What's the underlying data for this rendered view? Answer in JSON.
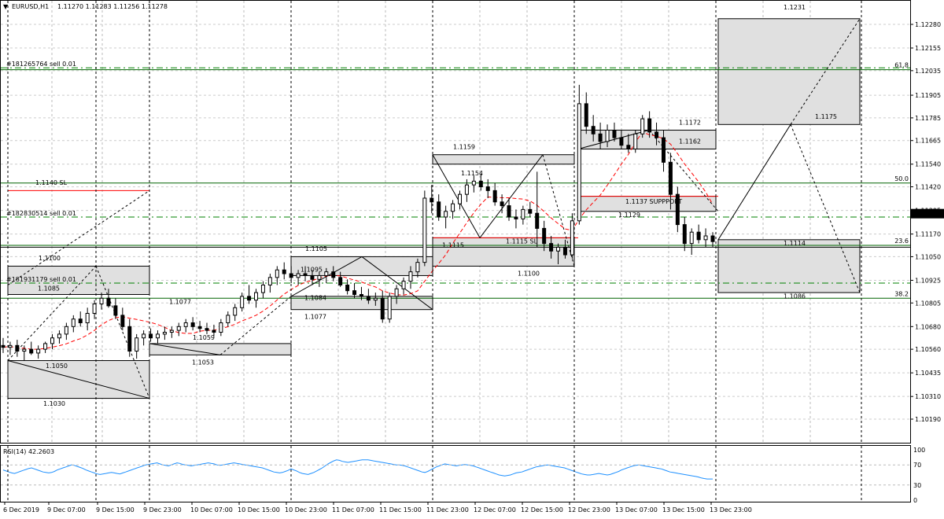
{
  "header": {
    "symbol": "EURUSD,H1",
    "ohlc": "1.11270 1.11283 1.11256 1.11278",
    "menu_glyph": "▼"
  },
  "price_axis": {
    "ticks": [
      "1.12280",
      "1.12155",
      "1.12035",
      "1.11905",
      "1.11785",
      "1.11665",
      "1.11540",
      "1.11420",
      "1.11295",
      "1.11170",
      "1.11050",
      "1.10925",
      "1.10805",
      "1.10680",
      "1.10560",
      "1.10435",
      "1.10310",
      "1.10190"
    ],
    "current_price": "1.11278"
  },
  "time_axis": {
    "ticks": [
      "6 Dec 2019",
      "9 Dec 07:00",
      "9 Dec 15:00",
      "9 Dec 23:00",
      "10 Dec 07:00",
      "10 Dec 15:00",
      "10 Dec 23:00",
      "11 Dec 07:00",
      "11 Dec 15:00",
      "11 Dec 23:00",
      "12 Dec 07:00",
      "12 Dec 15:00",
      "12 Dec 23:00",
      "13 Dec 07:00",
      "13 Dec 15:00",
      "13 Dec 23:00"
    ]
  },
  "fib_levels": [
    {
      "label": "61.8",
      "price": 1.1204
    },
    {
      "label": "50.0",
      "price": 1.1144
    },
    {
      "label": "23.6",
      "price": 1.1111
    },
    {
      "label": "38.2",
      "price": 1.1083
    }
  ],
  "order_lines": [
    {
      "label": "#181265764 sell 0.01",
      "price": 1.1205
    },
    {
      "label": "#182830514 sell 0.01",
      "price": 1.1126
    },
    {
      "label": "#181931179 sell 0.01",
      "price": 1.1091
    }
  ],
  "annotations": [
    {
      "text": "1.1140 SL",
      "color": "#ff0000"
    },
    {
      "text": "1.1137 SUPPPORT",
      "color": "#ff0000"
    },
    {
      "text": "1.1115 SL",
      "color": "#ff0000"
    },
    {
      "text": "1.1231"
    },
    {
      "text": "1.1175"
    },
    {
      "text": "1.1114"
    },
    {
      "text": "1.1086"
    },
    {
      "text": "1.1172"
    },
    {
      "text": "1.1162"
    },
    {
      "text": "1.1129"
    },
    {
      "text": "1.1159"
    },
    {
      "text": "1.1154"
    },
    {
      "text": "1.1115"
    },
    {
      "text": "1.1100"
    },
    {
      "text": "1.1105"
    },
    {
      "text": "1.1095"
    },
    {
      "text": "1.1084"
    },
    {
      "text": "1.1077"
    },
    {
      "text": "1.1077"
    },
    {
      "text": "1.1059"
    },
    {
      "text": "1.1053"
    },
    {
      "text": "1.1100"
    },
    {
      "text": "1.1085"
    },
    {
      "text": "1.1050"
    },
    {
      "text": "1.1030"
    }
  ],
  "rsi": {
    "label": "RSI(14) 42.2603",
    "ticks": [
      "100",
      "70",
      "30",
      "0"
    ],
    "values": [
      60,
      58,
      56,
      54,
      53,
      55,
      57,
      59,
      61,
      63,
      64,
      62,
      60,
      58,
      56,
      55,
      54,
      55,
      57,
      60,
      62,
      64,
      66,
      68,
      70,
      69,
      67,
      65,
      63,
      60,
      58,
      56,
      54,
      52,
      51,
      52,
      53,
      54,
      55,
      54,
      53,
      52,
      54,
      56,
      58,
      60,
      62,
      64,
      66,
      68,
      70,
      71,
      72,
      73,
      74,
      72,
      70,
      69,
      68,
      70,
      72,
      74,
      73,
      71,
      70,
      69,
      68,
      69,
      70,
      71,
      72,
      73,
      74,
      73,
      72,
      70,
      69,
      70,
      71,
      72,
      73,
      74,
      73,
      72,
      71,
      70,
      69,
      68,
      67,
      66,
      65,
      64,
      62,
      60,
      58,
      56,
      55,
      54,
      55,
      57,
      59,
      62,
      60,
      58,
      55,
      53,
      52,
      51,
      53,
      55,
      58,
      61,
      64,
      68,
      72,
      75,
      78,
      80,
      79,
      77,
      76,
      75,
      76,
      77,
      78,
      79,
      80,
      80,
      80,
      79,
      78,
      77,
      76,
      75,
      74,
      73,
      72,
      71,
      70,
      70,
      69,
      68,
      66,
      64,
      62,
      60,
      58,
      56,
      55,
      57,
      60,
      63,
      66,
      68,
      70,
      72,
      71,
      70,
      69,
      68,
      69,
      70,
      71,
      70,
      69,
      68,
      66,
      64,
      62,
      60,
      58,
      56,
      54,
      52,
      50,
      49,
      48,
      49,
      50,
      52,
      54,
      55,
      56,
      58,
      60,
      62,
      64,
      66,
      67,
      68,
      69,
      70,
      69,
      68,
      67,
      66,
      65,
      64,
      62,
      60,
      58,
      56,
      54,
      52,
      51,
      50,
      50,
      51,
      52,
      53,
      52,
      51,
      50,
      51,
      53,
      55,
      57,
      60,
      62,
      64,
      66,
      68,
      69,
      70,
      69,
      68,
      67,
      66,
      65,
      64,
      63,
      62,
      60,
      58,
      56,
      55,
      54,
      53,
      52,
      51,
      50,
      49,
      48,
      47,
      46,
      44,
      43,
      42,
      42,
      42
    ]
  },
  "colors": {
    "bull_candle": "#ffffff",
    "bear_candle": "#000000",
    "fib_line": "#006400",
    "order_line": "#008000",
    "sl_line": "#ff0000",
    "ma_line": "#ff0000",
    "rsi_line": "#1e90ff",
    "box_fill": "#e0e0e0",
    "current_price_bg": "#000000"
  },
  "candles": [
    [
      1.1058,
      1.1062,
      1.1054,
      1.1057
    ],
    [
      1.1057,
      1.106,
      1.1053,
      1.1058
    ],
    [
      1.1058,
      1.1061,
      1.1052,
      1.1055
    ],
    [
      1.1055,
      1.1058,
      1.105,
      1.1056
    ],
    [
      1.1056,
      1.106,
      1.1053,
      1.1054
    ],
    [
      1.1054,
      1.1058,
      1.1051,
      1.1056
    ],
    [
      1.1056,
      1.106,
      1.1054,
      1.1059
    ],
    [
      1.1059,
      1.1064,
      1.1056,
      1.1062
    ],
    [
      1.1062,
      1.1066,
      1.1059,
      1.1064
    ],
    [
      1.1064,
      1.107,
      1.1061,
      1.1068
    ],
    [
      1.1068,
      1.1074,
      1.1065,
      1.1072
    ],
    [
      1.1072,
      1.1076,
      1.1068,
      1.107
    ],
    [
      1.107,
      1.1078,
      1.1066,
      1.1075
    ],
    [
      1.1075,
      1.1082,
      1.1072,
      1.108
    ],
    [
      1.108,
      1.1086,
      1.1077,
      1.1083
    ],
    [
      1.1083,
      1.1088,
      1.1078,
      1.1079
    ],
    [
      1.1079,
      1.1083,
      1.1072,
      1.1074
    ],
    [
      1.1074,
      1.1078,
      1.1066,
      1.1068
    ],
    [
      1.1068,
      1.1072,
      1.1052,
      1.1055
    ],
    [
      1.1055,
      1.1064,
      1.1051,
      1.1062
    ],
    [
      1.1062,
      1.1066,
      1.1058,
      1.1064
    ],
    [
      1.1064,
      1.1067,
      1.106,
      1.1062
    ],
    [
      1.1062,
      1.1066,
      1.1059,
      1.1064
    ],
    [
      1.1064,
      1.1068,
      1.1061,
      1.1065
    ],
    [
      1.1065,
      1.1068,
      1.1062,
      1.1066
    ],
    [
      1.1066,
      1.107,
      1.1063,
      1.1068
    ],
    [
      1.1068,
      1.1072,
      1.1065,
      1.107
    ],
    [
      1.107,
      1.1073,
      1.1066,
      1.1068
    ],
    [
      1.1068,
      1.1071,
      1.1065,
      1.1067
    ],
    [
      1.1067,
      1.107,
      1.1064,
      1.1066
    ],
    [
      1.1066,
      1.1069,
      1.1063,
      1.1065
    ],
    [
      1.1065,
      1.1072,
      1.1063,
      1.107
    ],
    [
      1.107,
      1.1076,
      1.1068,
      1.1074
    ],
    [
      1.1074,
      1.108,
      1.1071,
      1.1078
    ],
    [
      1.1078,
      1.1086,
      1.1076,
      1.1084
    ],
    [
      1.1084,
      1.109,
      1.108,
      1.1082
    ],
    [
      1.1082,
      1.1088,
      1.1078,
      1.1086
    ],
    [
      1.1086,
      1.1092,
      1.1083,
      1.109
    ],
    [
      1.109,
      1.1096,
      1.1086,
      1.1094
    ],
    [
      1.1094,
      1.11,
      1.109,
      1.1098
    ],
    [
      1.1098,
      1.1102,
      1.1093,
      1.1096
    ],
    [
      1.1096,
      1.11,
      1.1091,
      1.1094
    ],
    [
      1.1094,
      1.1098,
      1.109,
      1.1096
    ],
    [
      1.1096,
      1.11,
      1.1092,
      1.1095
    ],
    [
      1.1095,
      1.1098,
      1.109,
      1.1093
    ],
    [
      1.1093,
      1.1097,
      1.1089,
      1.1095
    ],
    [
      1.1095,
      1.1099,
      1.1091,
      1.1097
    ],
    [
      1.1097,
      1.11,
      1.1092,
      1.1094
    ],
    [
      1.1094,
      1.1097,
      1.1089,
      1.109
    ],
    [
      1.109,
      1.1093,
      1.1085,
      1.1087
    ],
    [
      1.1087,
      1.1091,
      1.1083,
      1.1085
    ],
    [
      1.1085,
      1.1089,
      1.1082,
      1.1084
    ],
    [
      1.1084,
      1.1088,
      1.108,
      1.1082
    ],
    [
      1.1082,
      1.1086,
      1.1079,
      1.1083
    ],
    [
      1.1083,
      1.1087,
      1.107,
      1.1072
    ],
    [
      1.1072,
      1.1086,
      1.107,
      1.1084
    ],
    [
      1.1084,
      1.109,
      1.108,
      1.1088
    ],
    [
      1.1088,
      1.1094,
      1.1085,
      1.1092
    ],
    [
      1.1092,
      1.11,
      1.1088,
      1.1097
    ],
    [
      1.1097,
      1.1104,
      1.1094,
      1.1102
    ],
    [
      1.1102,
      1.114,
      1.11,
      1.1136
    ],
    [
      1.1136,
      1.1143,
      1.1128,
      1.1134
    ],
    [
      1.1134,
      1.1138,
      1.1124,
      1.1126
    ],
    [
      1.1126,
      1.1132,
      1.112,
      1.1129
    ],
    [
      1.1129,
      1.1135,
      1.1125,
      1.1133
    ],
    [
      1.1133,
      1.114,
      1.113,
      1.1138
    ],
    [
      1.1138,
      1.1146,
      1.1134,
      1.1143
    ],
    [
      1.1143,
      1.1148,
      1.1139,
      1.1145
    ],
    [
      1.1145,
      1.1149,
      1.114,
      1.1142
    ],
    [
      1.1142,
      1.1146,
      1.1136,
      1.114
    ],
    [
      1.114,
      1.1144,
      1.1132,
      1.1134
    ],
    [
      1.1134,
      1.1138,
      1.1128,
      1.1132
    ],
    [
      1.1132,
      1.1136,
      1.1124,
      1.1126
    ],
    [
      1.1126,
      1.113,
      1.112,
      1.1125
    ],
    [
      1.1125,
      1.1132,
      1.1122,
      1.113
    ],
    [
      1.113,
      1.1134,
      1.1126,
      1.1128
    ],
    [
      1.1128,
      1.115,
      1.111,
      1.112
    ],
    [
      1.112,
      1.1124,
      1.1108,
      1.1112
    ],
    [
      1.1112,
      1.1116,
      1.1104,
      1.1108
    ],
    [
      1.1108,
      1.1112,
      1.1101,
      1.111
    ],
    [
      1.111,
      1.1114,
      1.1104,
      1.1106
    ],
    [
      1.1106,
      1.1128,
      1.1104,
      1.1124
    ],
    [
      1.1124,
      1.1196,
      1.1122,
      1.1186
    ],
    [
      1.1186,
      1.1192,
      1.117,
      1.1174
    ],
    [
      1.1174,
      1.118,
      1.1166,
      1.117
    ],
    [
      1.117,
      1.1176,
      1.1162,
      1.1166
    ],
    [
      1.1166,
      1.1175,
      1.1163,
      1.1172
    ],
    [
      1.1172,
      1.1176,
      1.1166,
      1.1168
    ],
    [
      1.1168,
      1.1172,
      1.1162,
      1.1164
    ],
    [
      1.1164,
      1.117,
      1.116,
      1.1162
    ],
    [
      1.1162,
      1.1172,
      1.116,
      1.117
    ],
    [
      1.117,
      1.118,
      1.1168,
      1.1178
    ],
    [
      1.1178,
      1.1182,
      1.1168,
      1.1171
    ],
    [
      1.1171,
      1.1176,
      1.1164,
      1.1168
    ],
    [
      1.1168,
      1.1172,
      1.115,
      1.1155
    ],
    [
      1.1155,
      1.116,
      1.113,
      1.1138
    ],
    [
      1.1138,
      1.1142,
      1.1118,
      1.1122
    ],
    [
      1.1122,
      1.1126,
      1.1108,
      1.1112
    ],
    [
      1.1112,
      1.112,
      1.1106,
      1.1118
    ],
    [
      1.1118,
      1.1122,
      1.1112,
      1.1114
    ],
    [
      1.1114,
      1.112,
      1.111,
      1.1116
    ],
    [
      1.1116,
      1.1118,
      1.111,
      1.1113
    ]
  ]
}
